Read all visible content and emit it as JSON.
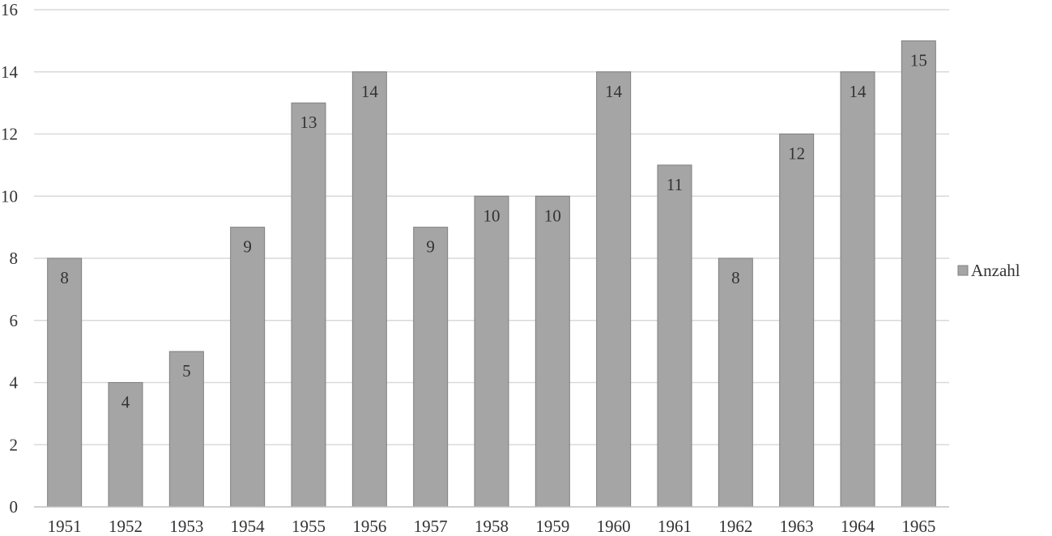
{
  "chart_data": {
    "type": "bar",
    "categories": [
      "1951",
      "1952",
      "1953",
      "1954",
      "1955",
      "1956",
      "1957",
      "1958",
      "1959",
      "1960",
      "1961",
      "1962",
      "1963",
      "1964",
      "1965"
    ],
    "series": [
      {
        "name": "Anzahl",
        "values": [
          8,
          4,
          5,
          9,
          13,
          14,
          9,
          10,
          10,
          14,
          11,
          8,
          12,
          14,
          15
        ]
      }
    ],
    "title": "",
    "xlabel": "",
    "ylabel": "",
    "ylim": [
      0,
      16
    ],
    "yticks": [
      0,
      2,
      4,
      6,
      8,
      10,
      12,
      14,
      16
    ],
    "grid": true,
    "legend": "right",
    "data_labels": "inside-end",
    "colors": {
      "bar": "#a5a5a5",
      "bar_stroke": "#7f7f7f",
      "grid": "#d9d9d9",
      "axis": "#bfbfbf"
    }
  }
}
